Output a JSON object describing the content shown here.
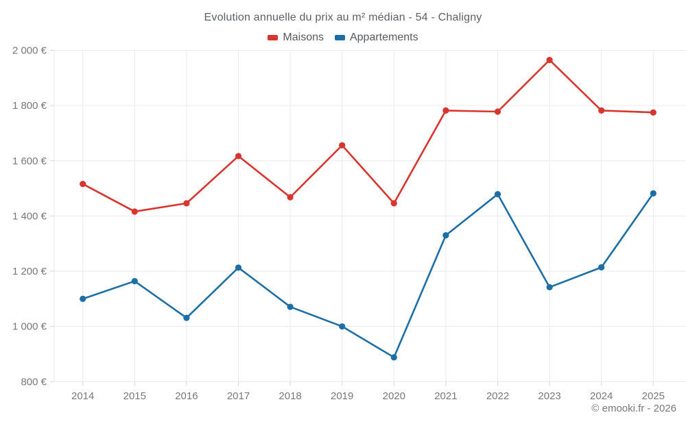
{
  "header": {
    "title": "Evolution annuelle du prix au m² médian - 54 - Chaligny"
  },
  "footer": {
    "credit": "© emooki.fr - 2026"
  },
  "colors": {
    "maisons": "#d8352e",
    "appartements": "#1c6fa5",
    "gridline": "#eaeaea",
    "axis": "#d5d5d5",
    "tick_text": "#76787b",
    "title_text": "#5c6065"
  },
  "chart_data": {
    "type": "line",
    "title": "Evolution annuelle du prix au m² médian - 54 - Chaligny",
    "x": [
      "2014",
      "2015",
      "2016",
      "2017",
      "2018",
      "2019",
      "2020",
      "2021",
      "2022",
      "2023",
      "2024",
      "2025"
    ],
    "series": [
      {
        "name": "Maisons",
        "color": "#d8352e",
        "values": [
          1516,
          1416,
          1446,
          1617,
          1468,
          1656,
          1446,
          1782,
          1778,
          1965,
          1782,
          1775
        ]
      },
      {
        "name": "Appartements",
        "color": "#1c6fa5",
        "values": [
          1100,
          1164,
          1031,
          1213,
          1071,
          1000,
          888,
          1330,
          1479,
          1142,
          1214,
          1482
        ]
      }
    ],
    "ylim": [
      800,
      2000
    ],
    "y_ticks": [
      {
        "value": 800,
        "label": "800 €"
      },
      {
        "value": 1000,
        "label": "1 000 €"
      },
      {
        "value": 1200,
        "label": "1 200 €"
      },
      {
        "value": 1400,
        "label": "1 400 €"
      },
      {
        "value": 1600,
        "label": "1 600 €"
      },
      {
        "value": 1800,
        "label": "1 800 €"
      },
      {
        "value": 2000,
        "label": "2 000 €"
      }
    ],
    "xlabel": "",
    "ylabel": "",
    "grid": true,
    "legend_position": "top",
    "annotations": []
  }
}
